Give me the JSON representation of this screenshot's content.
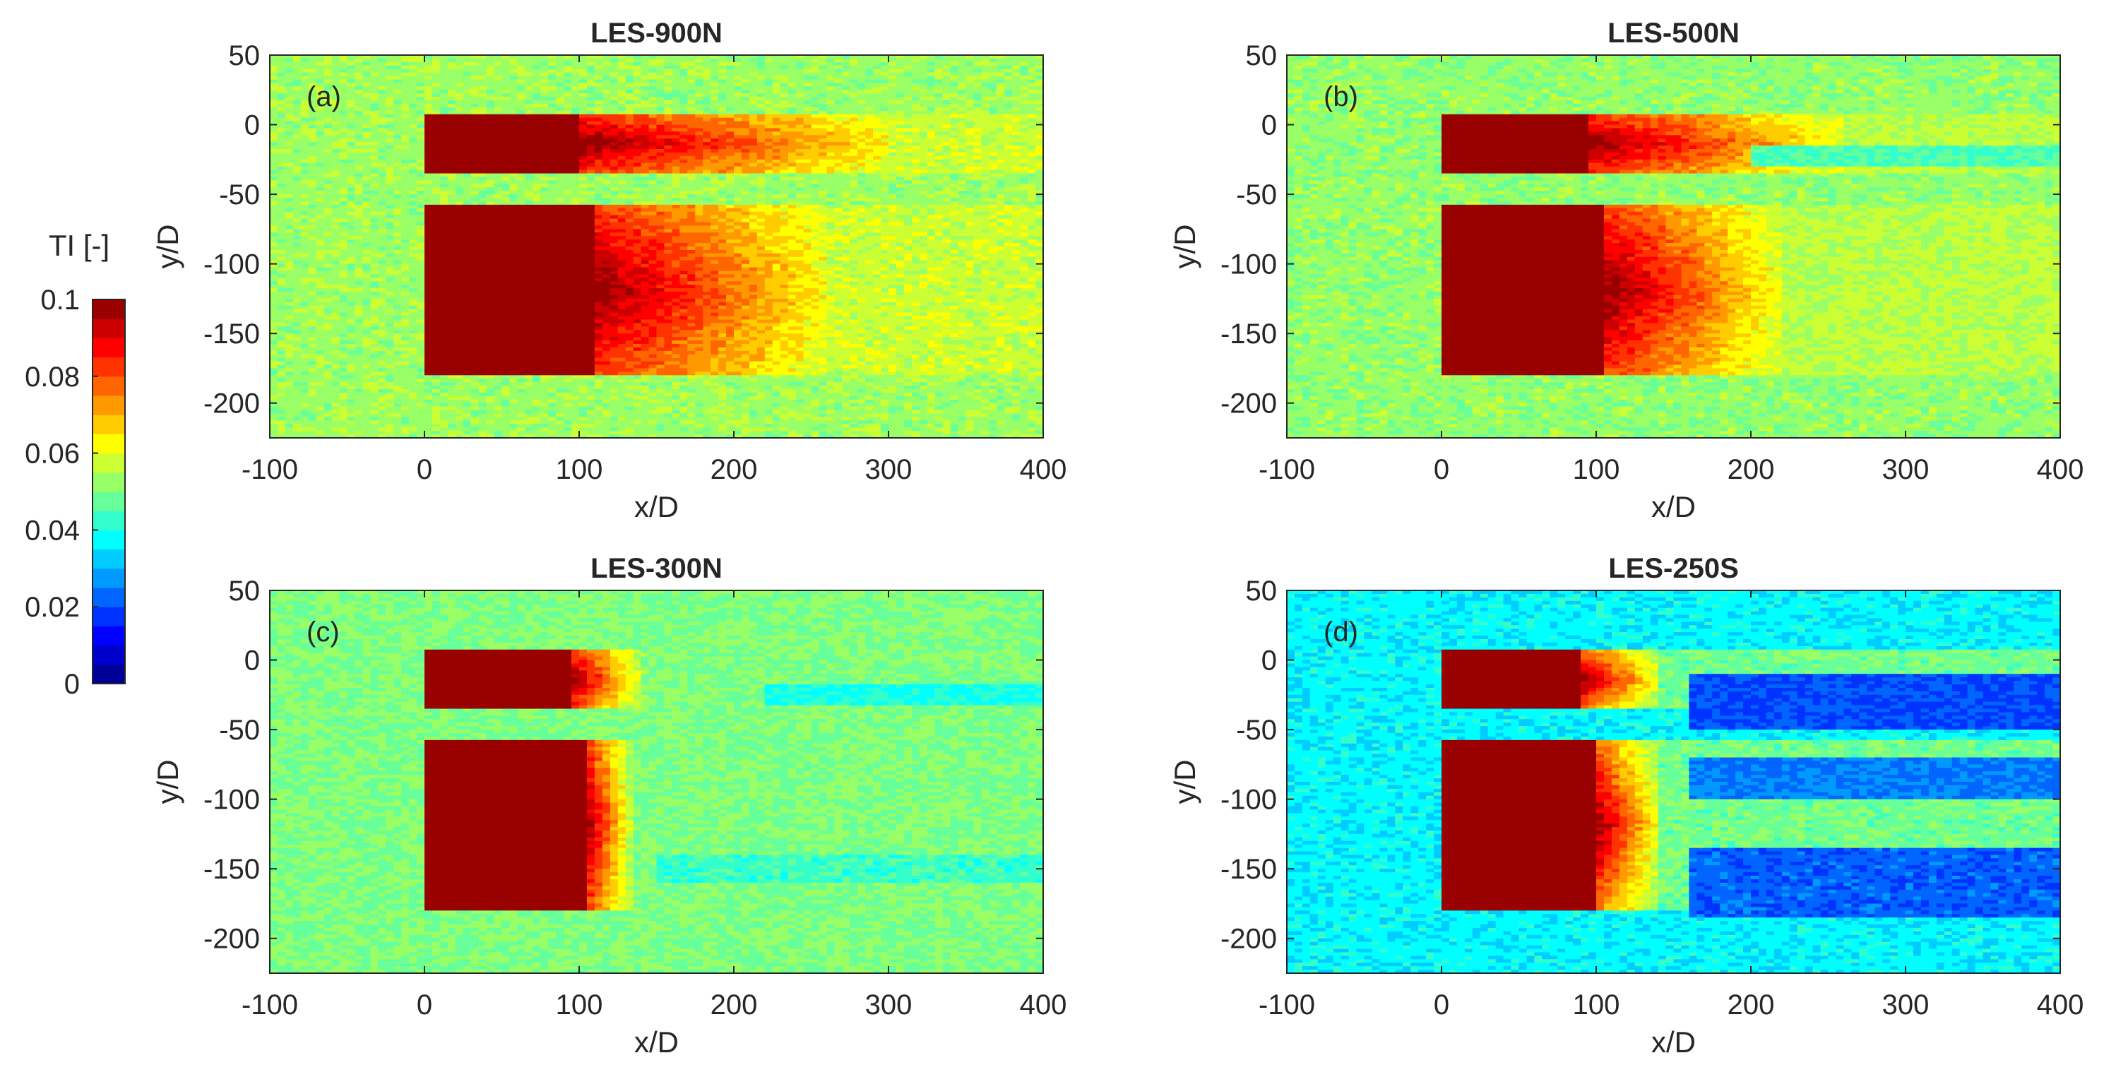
{
  "chart_data": {
    "type": "heatmap",
    "colorbar": {
      "label": "TI [-]",
      "range": [
        0,
        0.1
      ],
      "ticks": [
        0,
        0.02,
        0.04,
        0.06,
        0.08,
        0.1
      ],
      "tick_labels": [
        "0",
        "0.02",
        "0.04",
        "0.06",
        "0.08",
        "0.1"
      ],
      "levels": 20,
      "colormap": "jet"
    },
    "panels": [
      {
        "id": "a",
        "label": "(a)",
        "title": "LES-900N",
        "xlabel": "x/D",
        "ylabel": "y/D",
        "xlim": [
          -100,
          400
        ],
        "ylim": [
          -225,
          50
        ],
        "xticks": [
          -100,
          0,
          100,
          200,
          300,
          400
        ],
        "yticks": [
          50,
          0,
          -50,
          -100,
          -150,
          -200
        ],
        "background_ti": 0.053,
        "far_wake_ti": 0.062,
        "farms": [
          {
            "y_range": [
              -32,
              5
            ],
            "x_start": 0,
            "dense_until_x": 100,
            "wake_decay_x": 300
          },
          {
            "y_range": [
              -178,
              -60
            ],
            "x_start": 0,
            "dense_until_x": 110,
            "wake_decay_x": 260
          }
        ],
        "low_ti_regions": []
      },
      {
        "id": "b",
        "label": "(b)",
        "title": "LES-500N",
        "xlabel": "x/D",
        "ylabel": "y/D",
        "xlim": [
          -100,
          400
        ],
        "ylim": [
          -225,
          50
        ],
        "xticks": [
          -100,
          0,
          100,
          200,
          300,
          400
        ],
        "yticks": [
          50,
          0,
          -50,
          -100,
          -150,
          -200
        ],
        "background_ti": 0.052,
        "far_wake_ti": 0.06,
        "farms": [
          {
            "y_range": [
              -32,
              5
            ],
            "x_start": 0,
            "dense_until_x": 95,
            "wake_decay_x": 260
          },
          {
            "y_range": [
              -178,
              -60
            ],
            "x_start": 0,
            "dense_until_x": 105,
            "wake_decay_x": 220
          }
        ],
        "low_ti_regions": [
          {
            "x_range": [
              200,
              400
            ],
            "y_range": [
              -30,
              -15
            ],
            "ti": 0.045
          }
        ]
      },
      {
        "id": "c",
        "label": "(c)",
        "title": "LES-300N",
        "xlabel": "x/D",
        "ylabel": "y/D",
        "xlim": [
          -100,
          400
        ],
        "ylim": [
          -225,
          50
        ],
        "xticks": [
          -100,
          0,
          100,
          200,
          300,
          400
        ],
        "yticks": [
          50,
          0,
          -50,
          -100,
          -150,
          -200
        ],
        "background_ti": 0.05,
        "far_wake_ti": 0.045,
        "farms": [
          {
            "y_range": [
              -32,
              5
            ],
            "x_start": 0,
            "dense_until_x": 95,
            "wake_decay_x": 150
          },
          {
            "y_range": [
              -178,
              -60
            ],
            "x_start": 0,
            "dense_until_x": 105,
            "wake_decay_x": 140
          }
        ],
        "low_ti_regions": [
          {
            "x_range": [
              220,
              400
            ],
            "y_range": [
              -32,
              -18
            ],
            "ti": 0.04
          },
          {
            "x_range": [
              150,
              400
            ],
            "y_range": [
              -160,
              -140
            ],
            "ti": 0.043
          }
        ]
      },
      {
        "id": "d",
        "label": "(d)",
        "title": "LES-250S",
        "xlabel": "x/D",
        "ylabel": "y/D",
        "xlim": [
          -100,
          400
        ],
        "ylim": [
          -225,
          50
        ],
        "xticks": [
          -100,
          0,
          100,
          200,
          300,
          400
        ],
        "yticks": [
          50,
          0,
          -50,
          -100,
          -150,
          -200
        ],
        "background_ti": 0.037,
        "far_wake_ti": 0.06,
        "farms": [
          {
            "y_range": [
              -32,
              5
            ],
            "x_start": 0,
            "dense_until_x": 90,
            "wake_decay_x": 140
          },
          {
            "y_range": [
              -178,
              -60
            ],
            "x_start": 0,
            "dense_until_x": 100,
            "wake_decay_x": 140
          }
        ],
        "low_ti_regions": [
          {
            "x_range": [
              160,
              400
            ],
            "y_range": [
              -50,
              -10
            ],
            "ti": 0.02
          },
          {
            "x_range": [
              160,
              400
            ],
            "y_range": [
              -100,
              -70
            ],
            "ti": 0.025
          },
          {
            "x_range": [
              160,
              400
            ],
            "y_range": [
              -185,
              -135
            ],
            "ti": 0.022
          }
        ]
      }
    ]
  }
}
